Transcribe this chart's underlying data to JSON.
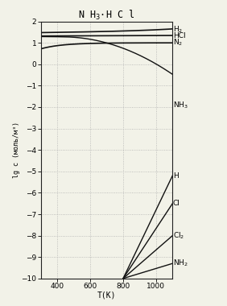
{
  "title": "NH₃·HCl",
  "ylabel": "lg c (моль/м³)",
  "xlabel": "T(K)",
  "xlim": [
    300,
    1100
  ],
  "ylim": [
    -10,
    2
  ],
  "yticks": [
    2,
    1,
    0,
    -1,
    -2,
    -3,
    -4,
    -5,
    -6,
    -7,
    -8,
    -9,
    -10
  ],
  "xticks": [
    400,
    600,
    800,
    1000
  ],
  "bg_color": "#f2f2e8",
  "line_color": "#111111",
  "title_display": "  N H 3 · H C l",
  "ylabel_display": "lg c (моль/м³)"
}
